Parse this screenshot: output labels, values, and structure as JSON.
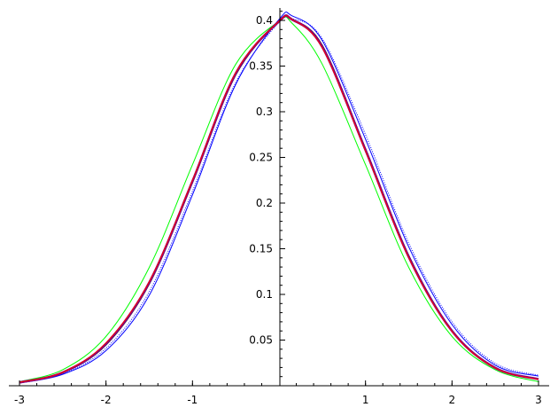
{
  "chart_data": {
    "type": "line",
    "title": "",
    "xlabel": "",
    "ylabel": "",
    "xlim": [
      -3,
      3
    ],
    "ylim": [
      0,
      0.41
    ],
    "grid": false,
    "x_ticks": [
      -3,
      -2,
      -1,
      1,
      2,
      3
    ],
    "x_tick_labels": [
      "-3",
      "-2",
      "-1",
      "1",
      "2",
      "3"
    ],
    "y_ticks": [
      0.05,
      0.1,
      0.15,
      0.2,
      0.25,
      0.3,
      0.35,
      0.4
    ],
    "y_tick_labels": [
      "0.05",
      "0.1",
      "0.15",
      "0.2",
      "0.25",
      "0.3",
      "0.35",
      "0.4"
    ],
    "x": [
      -3,
      -2.5,
      -2,
      -1.5,
      -1,
      -0.5,
      0,
      0.15,
      0.5,
      1,
      1.5,
      2,
      2.5,
      3
    ],
    "series": [
      {
        "color": "#00ff00",
        "style": "solid",
        "values": [
          0.0044,
          0.0175,
          0.054,
          0.1295,
          0.242,
          0.352,
          0.399,
          0.397,
          0.352,
          0.242,
          0.1295,
          0.054,
          0.0175,
          0.0044
        ]
      },
      {
        "color": "#0000ff",
        "style": "solid",
        "values": [
          0.003,
          0.0125,
          0.0385,
          0.099,
          0.209,
          0.33,
          0.401,
          0.405,
          0.378,
          0.27,
          0.152,
          0.067,
          0.0225,
          0.0105
        ]
      },
      {
        "color": "#0000ff",
        "style": "dotted",
        "values": [
          0.0035,
          0.0135,
          0.041,
          0.103,
          0.213,
          0.332,
          0.398,
          0.402,
          0.38,
          0.275,
          0.156,
          0.07,
          0.0245,
          0.0115
        ]
      },
      {
        "color": "#000000",
        "style": "solid",
        "values": [
          0.0035,
          0.014,
          0.0445,
          0.111,
          0.222,
          0.34,
          0.399,
          0.401,
          0.373,
          0.26,
          0.143,
          0.061,
          0.02,
          0.0075
        ]
      },
      {
        "color": "#800080",
        "style": "thick",
        "values": [
          0.0036,
          0.0145,
          0.046,
          0.113,
          0.224,
          0.342,
          0.399,
          0.401,
          0.371,
          0.258,
          0.141,
          0.06,
          0.0195,
          0.0072
        ]
      },
      {
        "color": "#ff0000",
        "style": "solid",
        "values": [
          0.0037,
          0.0148,
          0.047,
          0.114,
          0.225,
          0.343,
          0.399,
          0.401,
          0.37,
          0.257,
          0.14,
          0.0595,
          0.0193,
          0.007
        ]
      }
    ]
  }
}
